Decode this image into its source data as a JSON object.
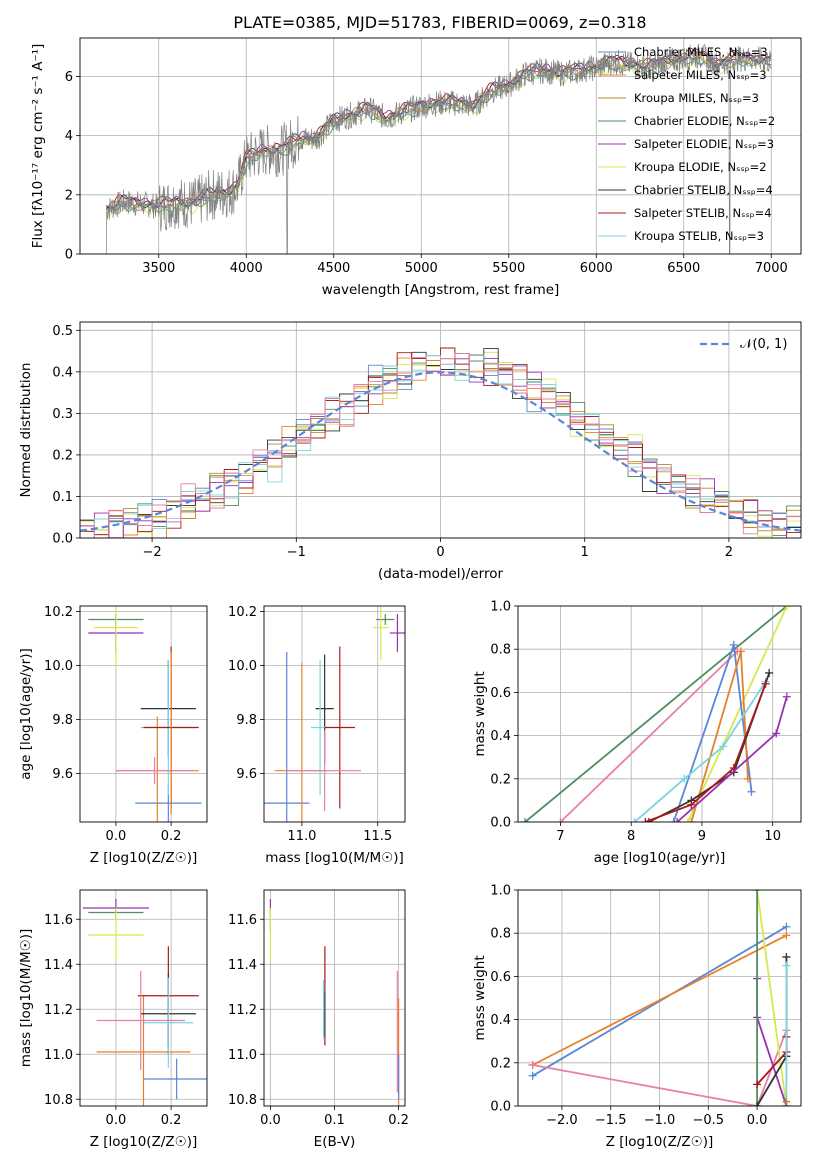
{
  "figure_title": "PLATE=0385, MJD=51783, FIBERID=0069, z=0.318",
  "chart_data": [
    {
      "id": "spectrum",
      "type": "line",
      "xlabel": "wavelength [Angstrom, rest frame]",
      "ylabel": "Flux [fλ10⁻¹⁷ erg cm⁻² s⁻¹ A⁻¹]",
      "xlim": [
        3050,
        7170
      ],
      "ylim": [
        0,
        7.3
      ],
      "xticks": [
        3500,
        4000,
        4500,
        5000,
        5500,
        6000,
        6500,
        7000
      ],
      "yticks": [
        0,
        2,
        4,
        6
      ],
      "data_color": "#808080",
      "data_anchors": [
        [
          3200,
          1.5
        ],
        [
          3300,
          1.75
        ],
        [
          3400,
          1.7
        ],
        [
          3500,
          1.6
        ],
        [
          3600,
          1.75
        ],
        [
          3700,
          1.7
        ],
        [
          3800,
          2.0
        ],
        [
          3900,
          2.1
        ],
        [
          3950,
          2.3
        ],
        [
          4000,
          3.2
        ],
        [
          4100,
          3.5
        ],
        [
          4200,
          3.5
        ],
        [
          4300,
          3.9
        ],
        [
          4400,
          3.9
        ],
        [
          4500,
          4.5
        ],
        [
          4600,
          4.7
        ],
        [
          4700,
          4.9
        ],
        [
          4800,
          4.6
        ],
        [
          4900,
          4.8
        ],
        [
          5000,
          5.0
        ],
        [
          5100,
          5.1
        ],
        [
          5200,
          5.1
        ],
        [
          5300,
          5.0
        ],
        [
          5400,
          5.5
        ],
        [
          5500,
          5.7
        ],
        [
          5600,
          6.1
        ],
        [
          5700,
          6.2
        ],
        [
          5800,
          6.1
        ],
        [
          5900,
          6.2
        ],
        [
          6000,
          6.3
        ],
        [
          6100,
          6.5
        ],
        [
          6200,
          6.4
        ],
        [
          6300,
          6.3
        ],
        [
          6400,
          6.5
        ],
        [
          6500,
          6.6
        ],
        [
          6600,
          6.7
        ],
        [
          6700,
          6.4
        ],
        [
          6800,
          6.6
        ],
        [
          6900,
          6.6
        ],
        [
          7000,
          6.5
        ]
      ],
      "legend_position": "upper right",
      "series": [
        {
          "name": "Chabrier MILES, N_SSP=3",
          "color": "#5b86d6",
          "offset": 0.03
        },
        {
          "name": "Salpeter MILES, N_SSP=3",
          "color": "#e8802a",
          "offset": -0.05
        },
        {
          "name": "Kroupa MILES, N_SSP=3",
          "color": "#b58a2a",
          "offset": 0.0
        },
        {
          "name": "Chabrier ELODIE, N_SSP=2",
          "color": "#4f8f5e",
          "offset": -0.1
        },
        {
          "name": "Salpeter ELODIE, N_SSP=3",
          "color": "#9b2fb3",
          "offset": 0.05
        },
        {
          "name": "Kroupa ELODIE, N_SSP=2",
          "color": "#d8e84a",
          "offset": -0.15
        },
        {
          "name": "Chabrier STELIB, N_SSP=4",
          "color": "#333333",
          "offset": 0.08
        },
        {
          "name": "Salpeter STELIB, N_SSP=4",
          "color": "#aa1a1a",
          "offset": 0.12
        },
        {
          "name": "Kroupa STELIB, N_SSP=3",
          "color": "#79d6e0",
          "offset": -0.08
        }
      ]
    },
    {
      "id": "residuals",
      "type": "step",
      "xlabel": "(data-model)/error",
      "ylabel": "Normed distribution",
      "xlim": [
        -2.5,
        2.5
      ],
      "ylim": [
        0,
        0.52
      ],
      "xticks": [
        -2,
        -1,
        0,
        1,
        2
      ],
      "yticks": [
        0.0,
        0.1,
        0.2,
        0.3,
        0.4,
        0.5
      ],
      "grid": true,
      "legend": {
        "label": "𝒩(0, 1)",
        "color": "#5b86d6",
        "position": "upper right"
      },
      "bin_width": 0.1,
      "histogram_colors": [
        "#5b86d6",
        "#e8802a",
        "#b58a2a",
        "#4f8f5e",
        "#9b2fb3",
        "#d8e84a",
        "#333333",
        "#aa1a1a",
        "#79d6e0",
        "#e87fa8"
      ],
      "noise": [
        [
          0.01,
          -0.02,
          0.015,
          0.02,
          -0.01,
          0.03,
          -0.02,
          0.01,
          0.0,
          -0.03,
          0.02,
          -0.01,
          0.02,
          0.01,
          -0.02,
          0.03,
          0.0,
          -0.01,
          0.02,
          -0.02,
          0.04,
          0.01,
          -0.03,
          0.02,
          0.0,
          0.03,
          -0.02,
          0.01,
          -0.01,
          0.02,
          0.03,
          -0.04,
          0.02,
          0.01,
          -0.02,
          0.0,
          0.02,
          -0.01,
          0.01,
          0.02,
          -0.01,
          0.0,
          0.02,
          -0.02,
          0.01,
          0.0,
          0.01,
          -0.01,
          0.01,
          0.0
        ],
        [
          -0.01,
          0.02,
          0.0,
          -0.02,
          0.01,
          -0.03,
          0.02,
          0.0,
          -0.01,
          0.03,
          -0.02,
          0.01,
          0.0,
          0.02,
          -0.01,
          -0.02,
          0.03,
          0.01,
          -0.03,
          0.02,
          0.0,
          0.04,
          0.02,
          -0.01,
          0.03,
          0.0,
          0.02,
          -0.03,
          0.01,
          0.03,
          -0.02,
          0.01,
          0.0,
          -0.01,
          0.02,
          0.01,
          -0.02,
          0.02,
          0.0,
          -0.01,
          0.02,
          0.01,
          -0.01,
          0.0,
          0.02,
          -0.01,
          0.0,
          0.01,
          -0.01,
          0.0
        ],
        [
          0.02,
          0.0,
          -0.01,
          0.01,
          0.02,
          0.0,
          -0.03,
          0.02,
          0.01,
          0.0,
          0.03,
          -0.02,
          -0.01,
          0.03,
          0.02,
          0.0,
          -0.02,
          0.03,
          0.01,
          -0.04,
          0.02,
          -0.02,
          0.01,
          0.04,
          -0.02,
          0.01,
          0.0,
          0.03,
          -0.01,
          0.0,
          0.02,
          0.0,
          -0.03,
          0.02,
          0.01,
          -0.02,
          0.0,
          0.01,
          0.02,
          -0.02,
          0.0,
          0.02,
          0.0,
          0.01,
          -0.02,
          0.01,
          0.01,
          0.0,
          -0.01,
          0.0
        ]
      ],
      "gaussian_mu": 0,
      "gaussian_sigma": 1
    },
    {
      "id": "age_vs_Z",
      "type": "errorbar",
      "xlabel": "Z [log10(Z/Z☉)]",
      "ylabel": "age  [log10(age/yr)]",
      "xlim": [
        -0.13,
        0.33
      ],
      "ylim": [
        9.42,
        10.22
      ],
      "xticks": [
        0.0,
        0.2
      ],
      "yticks": [
        9.6,
        9.8,
        10.0,
        10.2
      ],
      "points": [
        {
          "x": 0.0,
          "y": 10.17,
          "xerr": 0.1,
          "yerr": 0.02,
          "color": "#4f8f5e"
        },
        {
          "x": 0.0,
          "y": 10.12,
          "xerr": 0.1,
          "yerr": 0.07,
          "color": "#9b2fb3"
        },
        {
          "x": 0.0,
          "y": 10.14,
          "xerr": 0.08,
          "yerr": 0.15,
          "color": "#d8e84a"
        },
        {
          "x": 0.19,
          "y": 9.49,
          "xerr": 0.12,
          "yerr": 0.07,
          "color": "#5b86d6"
        },
        {
          "x": 0.15,
          "y": 9.61,
          "xerr": 0.15,
          "yerr": 0.2,
          "color": "#e8802a"
        },
        {
          "x": 0.19,
          "y": 9.84,
          "xerr": 0.1,
          "yerr": 0.18,
          "color": "#333333"
        },
        {
          "x": 0.19,
          "y": 9.77,
          "xerr": 0.1,
          "yerr": 0.25,
          "color": "#79d6e0"
        },
        {
          "x": 0.2,
          "y": 9.77,
          "xerr": 0.1,
          "yerr": 0.3,
          "color": "#aa1a1a"
        },
        {
          "x": 0.14,
          "y": 9.61,
          "xerr": 0.14,
          "yerr": 0.05,
          "color": "#e87fa8"
        },
        {
          "x": 0.2,
          "y": 9.75,
          "xerr": 0.0,
          "yerr": 0.3,
          "color": "#e8802a"
        }
      ]
    },
    {
      "id": "age_vs_mass",
      "type": "errorbar",
      "xlabel": "mass [log10(M/M☉)]",
      "ylabel": "",
      "xlim": [
        10.75,
        11.68
      ],
      "ylim": [
        9.42,
        10.22
      ],
      "xticks": [
        11.0,
        11.5
      ],
      "yticks": [
        9.6,
        9.8,
        10.0,
        10.2
      ],
      "points": [
        {
          "x": 10.9,
          "y": 9.49,
          "xerr": 0.15,
          "yerr": 0.56,
          "color": "#5b86d6"
        },
        {
          "x": 11.0,
          "y": 9.61,
          "xerr": 0.18,
          "yerr": 0.4,
          "color": "#e8802a"
        },
        {
          "x": 11.15,
          "y": 9.84,
          "xerr": 0.06,
          "yerr": 0.2,
          "color": "#333333"
        },
        {
          "x": 11.12,
          "y": 9.77,
          "xerr": 0.06,
          "yerr": 0.25,
          "color": "#79d6e0"
        },
        {
          "x": 11.25,
          "y": 9.77,
          "xerr": 0.1,
          "yerr": 0.3,
          "color": "#aa1a1a"
        },
        {
          "x": 11.15,
          "y": 9.61,
          "xerr": 0.24,
          "yerr": 0.15,
          "color": "#e87fa8"
        },
        {
          "x": 11.55,
          "y": 10.17,
          "xerr": 0.06,
          "yerr": 0.02,
          "color": "#4f8f5e"
        },
        {
          "x": 11.63,
          "y": 10.12,
          "xerr": 0.05,
          "yerr": 0.07,
          "color": "#9b2fb3"
        },
        {
          "x": 11.52,
          "y": 10.14,
          "xerr": 0.05,
          "yerr": 0.12,
          "color": "#d8e84a"
        }
      ]
    },
    {
      "id": "weight_vs_age",
      "type": "line",
      "xlabel": "age  [log10(age/yr)]",
      "ylabel": "mass weight",
      "xlim": [
        6.4,
        10.4
      ],
      "ylim": [
        0,
        1.0
      ],
      "xticks": [
        7,
        8,
        9,
        10
      ],
      "yticks": [
        0.0,
        0.2,
        0.4,
        0.6,
        0.8,
        1.0
      ],
      "grid": true,
      "series": [
        {
          "color": "#4f8f5e",
          "points": [
            [
              6.5,
              0.0
            ],
            [
              10.2,
              1.0
            ]
          ]
        },
        {
          "color": "#d8e84a",
          "points": [
            [
              8.8,
              0.0
            ],
            [
              10.2,
              1.0
            ]
          ]
        },
        {
          "color": "#e87fa8",
          "points": [
            [
              7.0,
              0.0
            ],
            [
              9.5,
              0.79
            ]
          ]
        },
        {
          "color": "#5b86d6",
          "points": [
            [
              8.6,
              0.0
            ],
            [
              9.45,
              0.82
            ],
            [
              9.7,
              0.14
            ]
          ]
        },
        {
          "color": "#e8802a",
          "points": [
            [
              8.85,
              0.0
            ],
            [
              9.55,
              0.79
            ],
            [
              9.65,
              0.2
            ]
          ]
        },
        {
          "color": "#79d6e0",
          "points": [
            [
              8.05,
              0.0
            ],
            [
              8.75,
              0.2
            ],
            [
              9.3,
              0.35
            ],
            [
              9.9,
              0.65
            ]
          ]
        },
        {
          "color": "#333333",
          "points": [
            [
              8.25,
              0.0
            ],
            [
              8.85,
              0.1
            ],
            [
              9.45,
              0.23
            ],
            [
              9.95,
              0.69
            ]
          ]
        },
        {
          "color": "#aa1a1a",
          "points": [
            [
              8.2,
              0.0
            ],
            [
              8.85,
              0.08
            ],
            [
              9.45,
              0.25
            ],
            [
              9.9,
              0.64
            ]
          ]
        },
        {
          "color": "#9b2fb3",
          "points": [
            [
              8.65,
              0.0
            ],
            [
              10.05,
              0.41
            ],
            [
              10.2,
              0.58
            ]
          ]
        }
      ]
    },
    {
      "id": "mass_vs_Z",
      "type": "errorbar",
      "xlabel": "Z [log10(Z/Z☉)]",
      "ylabel": "mass [log10(M/M☉)]",
      "xlim": [
        -0.13,
        0.33
      ],
      "ylim": [
        10.77,
        11.73
      ],
      "xticks": [
        0.0,
        0.2
      ],
      "yticks": [
        10.8,
        11.0,
        11.2,
        11.4,
        11.6
      ],
      "points": [
        {
          "x": 0.0,
          "y": 11.65,
          "xerr": 0.12,
          "yerr": 0.04,
          "color": "#9b2fb3"
        },
        {
          "x": 0.0,
          "y": 11.63,
          "xerr": 0.1,
          "yerr": 0.03,
          "color": "#4f8f5e"
        },
        {
          "x": 0.0,
          "y": 11.53,
          "xerr": 0.1,
          "yerr": 0.12,
          "color": "#d8e84a"
        },
        {
          "x": 0.22,
          "y": 10.89,
          "xerr": 0.12,
          "yerr": 0.09,
          "color": "#5b86d6"
        },
        {
          "x": 0.1,
          "y": 11.01,
          "xerr": 0.17,
          "yerr": 0.25,
          "color": "#e8802a"
        },
        {
          "x": 0.19,
          "y": 11.26,
          "xerr": 0.11,
          "yerr": 0.22,
          "color": "#aa1a1a"
        },
        {
          "x": 0.19,
          "y": 11.18,
          "xerr": 0.1,
          "yerr": 0.18,
          "color": "#333333"
        },
        {
          "x": 0.19,
          "y": 11.14,
          "xerr": 0.09,
          "yerr": 0.2,
          "color": "#79d6e0"
        },
        {
          "x": 0.09,
          "y": 11.15,
          "xerr": 0.16,
          "yerr": 0.22,
          "color": "#e87fa8"
        }
      ]
    },
    {
      "id": "mass_vs_ebv",
      "type": "errorbar",
      "xlabel": "E(B-V)",
      "ylabel": "",
      "xlim": [
        -0.01,
        0.21
      ],
      "ylim": [
        10.77,
        11.73
      ],
      "xticks": [
        0.0,
        0.1,
        0.2
      ],
      "yticks": [
        10.8,
        11.0,
        11.2,
        11.4,
        11.6
      ],
      "points": [
        {
          "x": 0.0,
          "y": 11.62,
          "xerr": 0,
          "yerr": 0.07,
          "color": "#9b2fb3"
        },
        {
          "x": 0.0,
          "y": 11.53,
          "xerr": 0,
          "yerr": 0.12,
          "color": "#d8e84a"
        },
        {
          "x": 0.085,
          "y": 11.26,
          "xerr": 0,
          "yerr": 0.22,
          "color": "#aa1a1a"
        },
        {
          "x": 0.085,
          "y": 11.18,
          "xerr": 0,
          "yerr": 0.1,
          "color": "#333333"
        },
        {
          "x": 0.083,
          "y": 11.2,
          "xerr": 0,
          "yerr": 0.13,
          "color": "#79d6e0"
        },
        {
          "x": 0.198,
          "y": 11.1,
          "xerr": 0,
          "yerr": 0.27,
          "color": "#e87fa8"
        },
        {
          "x": 0.2,
          "y": 11.0,
          "xerr": 0,
          "yerr": 0.25,
          "color": "#e8802a"
        },
        {
          "x": 0.2,
          "y": 10.9,
          "xerr": 0,
          "yerr": 0.1,
          "color": "#5b86d6"
        }
      ]
    },
    {
      "id": "weight_vs_Z",
      "type": "line",
      "xlabel": "Z [log10(Z/Z☉)]",
      "ylabel": "mass weight",
      "xlim": [
        -2.45,
        0.45
      ],
      "ylim": [
        0,
        1.0
      ],
      "xticks": [
        -2.0,
        -1.5,
        -1.0,
        -0.5,
        0.0
      ],
      "yticks": [
        0.0,
        0.2,
        0.4,
        0.6,
        0.8,
        1.0
      ],
      "grid": true,
      "series": [
        {
          "color": "#5b86d6",
          "points": [
            [
              -2.3,
              0.14
            ],
            [
              0.3,
              0.83
            ]
          ]
        },
        {
          "color": "#e8802a",
          "points": [
            [
              -2.3,
              0.19
            ],
            [
              0.3,
              0.79
            ]
          ]
        },
        {
          "color": "#e87fa8",
          "points": [
            [
              -2.3,
              0.19
            ],
            [
              0.0,
              0.0
            ],
            [
              0.3,
              0.35
            ]
          ]
        },
        {
          "color": "#d8e84a",
          "points": [
            [
              0.0,
              1.0
            ],
            [
              0.3,
              0.0
            ]
          ]
        },
        {
          "color": "#9b2fb3",
          "points": [
            [
              0.0,
              0.59
            ],
            [
              0.0,
              0.41
            ],
            [
              0.3,
              0.0
            ]
          ]
        },
        {
          "color": "#4f8f5e",
          "points": [
            [
              0.0,
              0.0
            ],
            [
              0.0,
              1.0
            ]
          ]
        },
        {
          "color": "#333333",
          "points": [
            [
              0.0,
              0.0
            ],
            [
              0.3,
              0.23
            ],
            [
              0.3,
              0.69
            ]
          ]
        },
        {
          "color": "#aa1a1a",
          "points": [
            [
              0.0,
              0.1
            ],
            [
              0.3,
              0.25
            ],
            [
              0.3,
              0.32
            ]
          ]
        },
        {
          "color": "#79d6e0",
          "points": [
            [
              0.3,
              0.0
            ],
            [
              0.3,
              0.65
            ]
          ]
        },
        {
          "color": "#b58a2a",
          "points": [
            [
              0.3,
              0.0
            ],
            [
              0.3,
              0.02
            ]
          ]
        }
      ]
    }
  ]
}
